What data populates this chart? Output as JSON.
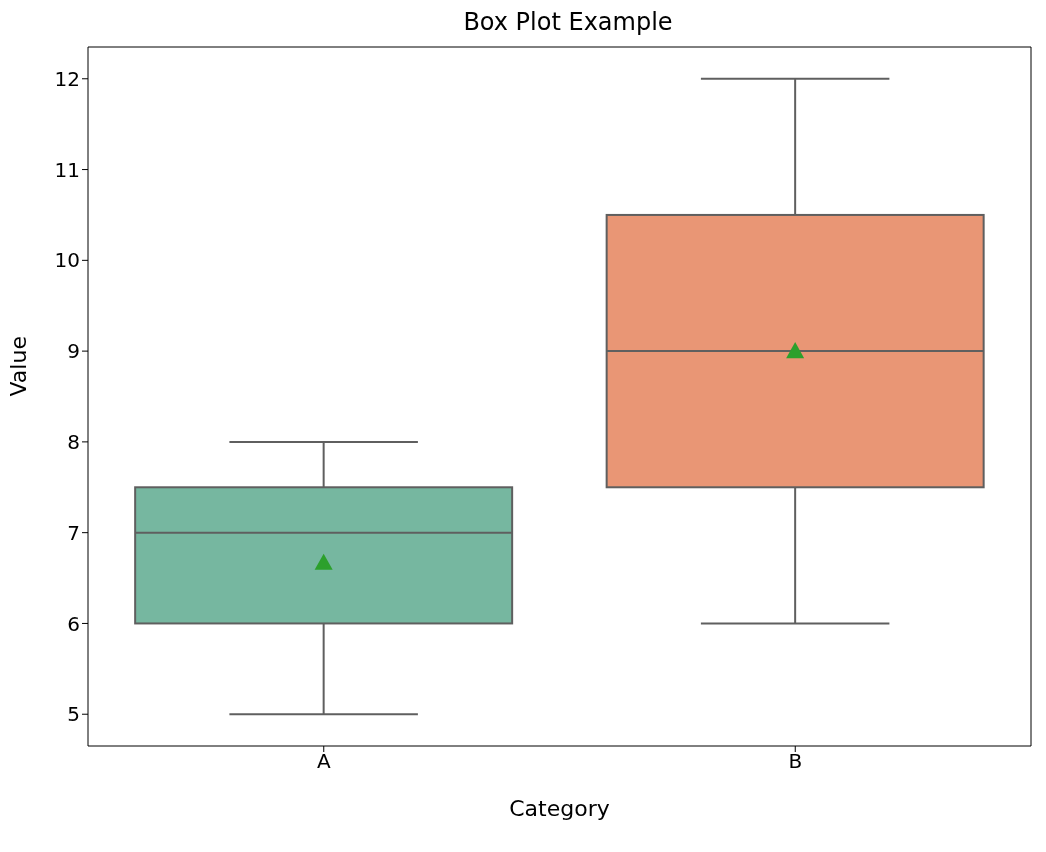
{
  "chart_data": {
    "type": "box",
    "title": "Box Plot Example",
    "xlabel": "Category",
    "ylabel": "Value",
    "categories": [
      "A",
      "B"
    ],
    "colors": [
      "#76b7a0",
      "#e99675"
    ],
    "boxes": [
      {
        "low": 5,
        "q1": 6,
        "median": 7,
        "q3": 7.5,
        "high": 8,
        "mean": 6.67
      },
      {
        "low": 6,
        "q1": 7.5,
        "median": 9,
        "q3": 10.5,
        "high": 12,
        "mean": 9
      }
    ],
    "marker": "triangle",
    "ylim": [
      4.65,
      12.35
    ],
    "yticks": [
      5,
      6,
      7,
      8,
      9,
      10,
      11,
      12
    ],
    "grid": false,
    "legend": false
  }
}
